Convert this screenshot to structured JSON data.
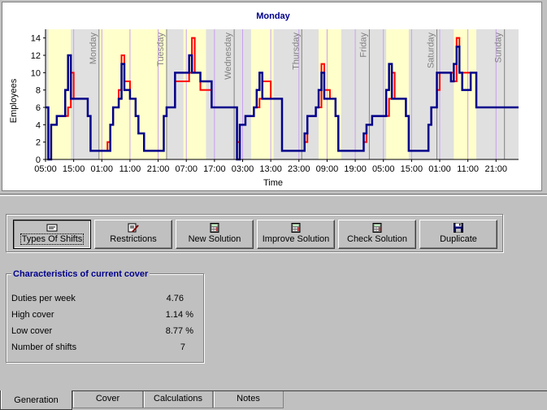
{
  "chart": {
    "title": "Monday",
    "xlabel": "Time",
    "ylabel": "Employees"
  },
  "chart_data": {
    "type": "line",
    "title": "Monday",
    "xlabel": "Time",
    "ylabel": "Employees",
    "ylim": [
      0,
      15
    ],
    "yticks": [
      0,
      2,
      4,
      6,
      8,
      10,
      12,
      14
    ],
    "xlim_hours": [
      5,
      173
    ],
    "xticks": [
      "05:00",
      "15:00",
      "01:00",
      "11:00",
      "21:00",
      "07:00",
      "17:00",
      "03:00",
      "13:00",
      "23:00",
      "09:00",
      "19:00",
      "05:00",
      "15:00",
      "01:00",
      "11:00",
      "21:00"
    ],
    "day_labels": [
      {
        "label": "Monday",
        "hour": 24
      },
      {
        "label": "Tuesday",
        "hour": 48
      },
      {
        "label": "Wednesday",
        "hour": 72
      },
      {
        "label": "Thursday",
        "hour": 96
      },
      {
        "label": "Friday",
        "hour": 120
      },
      {
        "label": "Saturday",
        "hour": 144
      },
      {
        "label": "Sunday",
        "hour": 168
      }
    ],
    "selected_band_hours": [
      24,
      48
    ],
    "band_colors": {
      "grey": "#e0e0e0",
      "yellow": "#ffffcc",
      "gridline": "#c8a0f0"
    },
    "series": [
      {
        "name": "",
        "color": "#ff0000",
        "points": [
          [
            5,
            6
          ],
          [
            6,
            0
          ],
          [
            7,
            4
          ],
          [
            9,
            5
          ],
          [
            13,
            6
          ],
          [
            14,
            10
          ],
          [
            15,
            7
          ],
          [
            17,
            7
          ],
          [
            20,
            5
          ],
          [
            21,
            1
          ],
          [
            26,
            1
          ],
          [
            27,
            2
          ],
          [
            28,
            4
          ],
          [
            29,
            6
          ],
          [
            31,
            8
          ],
          [
            32,
            12
          ],
          [
            33,
            9
          ],
          [
            35,
            7
          ],
          [
            37,
            5
          ],
          [
            38,
            3
          ],
          [
            40,
            1
          ],
          [
            46,
            1
          ],
          [
            47,
            5
          ],
          [
            48,
            6
          ],
          [
            51,
            9
          ],
          [
            56,
            10
          ],
          [
            57,
            14
          ],
          [
            58,
            10
          ],
          [
            60,
            8
          ],
          [
            64,
            6
          ],
          [
            72,
            6
          ],
          [
            73,
            2
          ],
          [
            74,
            4
          ],
          [
            76,
            5
          ],
          [
            79,
            6
          ],
          [
            81,
            7
          ],
          [
            82,
            9
          ],
          [
            85,
            7
          ],
          [
            89,
            1
          ],
          [
            96,
            1
          ],
          [
            97,
            2
          ],
          [
            98,
            5
          ],
          [
            101,
            6
          ],
          [
            103,
            11
          ],
          [
            104,
            8
          ],
          [
            106,
            7
          ],
          [
            108,
            5
          ],
          [
            109,
            1
          ],
          [
            117,
            1
          ],
          [
            118,
            2
          ],
          [
            119,
            4
          ],
          [
            121,
            5
          ],
          [
            127,
            7
          ],
          [
            128,
            10
          ],
          [
            129,
            7
          ],
          [
            131,
            7
          ],
          [
            133,
            5
          ],
          [
            134,
            1
          ],
          [
            140,
            1
          ],
          [
            141,
            4
          ],
          [
            142,
            6
          ],
          [
            144,
            8
          ],
          [
            145,
            10
          ],
          [
            150,
            9
          ],
          [
            151,
            14
          ],
          [
            152,
            10
          ],
          [
            157,
            10
          ],
          [
            158,
            6
          ],
          [
            173,
            6
          ]
        ]
      },
      {
        "name": "",
        "color": "#00008b",
        "points": [
          [
            5,
            6
          ],
          [
            6,
            0
          ],
          [
            7,
            4
          ],
          [
            9,
            5
          ],
          [
            12,
            8
          ],
          [
            13,
            12
          ],
          [
            14,
            7
          ],
          [
            17,
            7
          ],
          [
            20,
            5
          ],
          [
            21,
            1
          ],
          [
            27,
            1
          ],
          [
            28,
            4
          ],
          [
            29,
            6
          ],
          [
            31,
            7
          ],
          [
            32,
            11
          ],
          [
            33,
            8
          ],
          [
            35,
            7
          ],
          [
            37,
            5
          ],
          [
            38,
            3
          ],
          [
            40,
            1
          ],
          [
            46,
            1
          ],
          [
            47,
            5
          ],
          [
            48,
            6
          ],
          [
            51,
            10
          ],
          [
            56,
            12
          ],
          [
            57,
            10
          ],
          [
            60,
            9
          ],
          [
            64,
            6
          ],
          [
            72,
            6
          ],
          [
            73,
            0
          ],
          [
            74,
            4
          ],
          [
            76,
            5
          ],
          [
            79,
            6
          ],
          [
            80,
            8
          ],
          [
            81,
            10
          ],
          [
            82,
            7
          ],
          [
            89,
            1
          ],
          [
            96,
            1
          ],
          [
            97,
            3
          ],
          [
            98,
            5
          ],
          [
            101,
            6
          ],
          [
            102,
            8
          ],
          [
            103,
            10
          ],
          [
            104,
            7
          ],
          [
            108,
            5
          ],
          [
            109,
            1
          ],
          [
            117,
            1
          ],
          [
            118,
            3
          ],
          [
            119,
            4
          ],
          [
            121,
            5
          ],
          [
            126,
            8
          ],
          [
            127,
            11
          ],
          [
            128,
            7
          ],
          [
            133,
            5
          ],
          [
            134,
            1
          ],
          [
            140,
            1
          ],
          [
            141,
            4
          ],
          [
            142,
            6
          ],
          [
            144,
            10
          ],
          [
            149,
            9
          ],
          [
            150,
            11
          ],
          [
            151,
            13
          ],
          [
            152,
            10
          ],
          [
            153,
            8
          ],
          [
            156,
            10
          ],
          [
            158,
            6
          ],
          [
            173,
            6
          ]
        ]
      }
    ]
  },
  "toolbar": {
    "buttons": [
      {
        "label": "Types Of Shifts",
        "icon": "shift-types-icon"
      },
      {
        "label": "Restrictions",
        "icon": "edit-icon"
      },
      {
        "label": "New Solution",
        "icon": "calculator-icon"
      },
      {
        "label": "Improve Solution",
        "icon": "calculator-icon"
      },
      {
        "label": "Check Solution",
        "icon": "calculator-icon"
      },
      {
        "label": "Duplicate",
        "icon": "floppy-disk-icon"
      }
    ]
  },
  "characteristics": {
    "title": "Characteristics of current cover",
    "rows": [
      {
        "label": "Duties per week",
        "value": "4.76"
      },
      {
        "label": "High cover",
        "value": "1.14 %"
      },
      {
        "label": "Low cover",
        "value": "8.77 %"
      },
      {
        "label": "Number of shifts",
        "value": "7"
      }
    ]
  },
  "tabs": [
    {
      "label": "Generation"
    },
    {
      "label": "Cover"
    },
    {
      "label": "Calculations"
    },
    {
      "label": "Notes"
    }
  ]
}
